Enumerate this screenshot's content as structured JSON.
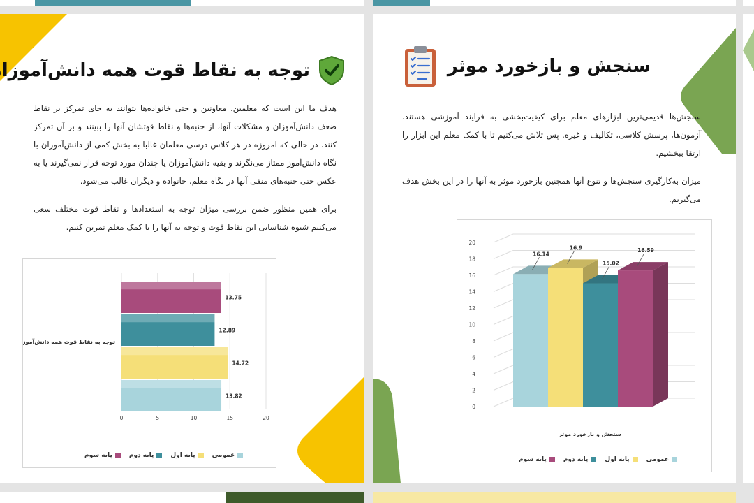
{
  "left_page": {
    "title": "توجه به نقاط قوت همه دانش‌آموزان",
    "icon": "shield-check-icon",
    "paragraphs": [
      "هدف ما این است که معلمین، معاونین و حتی خانواده‌ها بتوانند به جای تمرکز بر نقاط ضعف دانش‌آموزان و مشکلات آنها، از جنبه‌ها و نقاط قوتشان آنها را ببینند و بر آن تمرکز کنند. در حالی که امروزه در هر کلاس درسی معلمان غالبا به بخش کمی از دانش‌آموزان با نگاه دانش‌آموز ممتاز می‌نگرند و بقیه دانش‌آموزان یا چندان مورد توجه قرار نمی‌گیرند یا به عکس حتی جنبه‌های منفی آنها در نگاه معلم، خانواده و دیگران غالب می‌شود.",
      "برای همین منظور ضمن بررسی میزان توجه به استعدادها و نقاط قوت مختلف سعی می‌کنیم شیوه شناسایی این نقاط قوت و توجه به آنها را با کمک معلم تمرین کنیم."
    ]
  },
  "right_page": {
    "title": "سنجش و بازخورد موثر",
    "icon": "clipboard-checklist-icon",
    "paragraphs": [
      "سنجش‌ها قدیمی‌ترین ابزارهای معلم برای کیفیت‌بخشی به فرایند آموزشی هستند. آزمون‌ها، پرسش کلاسی، تکالیف و غیره. پس تلاش می‌کنیم تا با کمک معلم این ابزار را ارتقا ببخشیم.",
      "میزان به‌کارگیری سنجش‌ها و تنوع آنها همچنین بازخورد موثر به آنها را در این بخش هدف می‌گیریم."
    ]
  },
  "colors": {
    "teal_light": "#a8d4dc",
    "yellow": "#f5df78",
    "teal_dark": "#3e8f9c",
    "magenta": "#a84b7c",
    "accent_yellow": "#f7c300",
    "accent_green": "#7aa552"
  },
  "chart_data": [
    {
      "type": "bar",
      "orientation": "horizontal",
      "title": "",
      "category_label": "توجه به نقاط قوت همه دانش‌آموزان",
      "x_ticks": [
        "0",
        "5",
        "10",
        "15",
        "20"
      ],
      "xlim": [
        0,
        20
      ],
      "series": [
        {
          "name": "پایه سوم",
          "value": 13.75,
          "label": "13.75"
        },
        {
          "name": "پایه دوم",
          "value": 12.89,
          "label": "12.89"
        },
        {
          "name": "پایه اول",
          "value": 14.72,
          "label": "14.72"
        },
        {
          "name": "عمومی",
          "value": 13.82,
          "label": "13.82"
        }
      ],
      "legend": [
        "عمومی",
        "پایه اول",
        "پایه دوم",
        "پایه سوم"
      ],
      "legend_position": "bottom"
    },
    {
      "type": "bar",
      "orientation": "vertical-3d",
      "title": "",
      "category_label": "سنجش و بازخورد موثر",
      "y_ticks": [
        "0",
        "2",
        "4",
        "6",
        "8",
        "10",
        "12",
        "14",
        "16",
        "18",
        "20"
      ],
      "ylim": [
        0,
        20
      ],
      "series": [
        {
          "name": "عمومی",
          "value": 16.14,
          "label": "16.14"
        },
        {
          "name": "پایه اول",
          "value": 16.9,
          "label": "16.9"
        },
        {
          "name": "پایه دوم",
          "value": 15.02,
          "label": "15.02"
        },
        {
          "name": "پایه سوم",
          "value": 16.59,
          "label": "16.59"
        }
      ],
      "legend": [
        "عمومی",
        "پایه اول",
        "پایه دوم",
        "پایه سوم"
      ],
      "legend_position": "bottom"
    }
  ]
}
